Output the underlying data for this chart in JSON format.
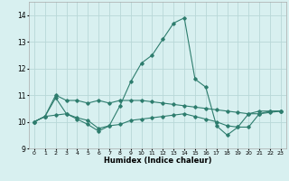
{
  "xlabel": "Humidex (Indice chaleur)",
  "x": [
    0,
    1,
    2,
    3,
    4,
    5,
    6,
    7,
    8,
    9,
    10,
    11,
    12,
    13,
    14,
    15,
    16,
    17,
    18,
    19,
    20,
    21,
    22,
    23
  ],
  "series": [
    [
      10.0,
      10.2,
      10.9,
      10.3,
      10.1,
      9.9,
      9.65,
      9.85,
      10.6,
      11.5,
      12.2,
      12.5,
      13.1,
      13.7,
      13.9,
      11.6,
      11.3,
      9.85,
      9.5,
      9.8,
      10.3,
      10.4,
      10.4,
      10.4
    ],
    [
      10.0,
      10.2,
      11.0,
      10.8,
      10.8,
      10.7,
      10.8,
      10.7,
      10.8,
      10.8,
      10.8,
      10.75,
      10.7,
      10.65,
      10.6,
      10.55,
      10.5,
      10.45,
      10.4,
      10.35,
      10.3,
      10.3,
      10.35,
      10.4
    ],
    [
      10.0,
      10.2,
      10.25,
      10.3,
      10.15,
      10.05,
      9.75,
      9.85,
      9.9,
      10.05,
      10.1,
      10.15,
      10.2,
      10.25,
      10.3,
      10.2,
      10.1,
      10.0,
      9.85,
      9.8,
      9.8,
      10.3,
      10.4,
      10.4
    ]
  ],
  "line_color": "#2e7d6e",
  "background_color": "#d8f0f0",
  "grid_color": "#b8d8d8",
  "ylim": [
    9,
    14.5
  ],
  "xlim": [
    -0.5,
    23.5
  ],
  "yticks": [
    9,
    10,
    11,
    12,
    13,
    14
  ],
  "xticks": [
    0,
    1,
    2,
    3,
    4,
    5,
    6,
    7,
    8,
    9,
    10,
    11,
    12,
    13,
    14,
    15,
    16,
    17,
    18,
    19,
    20,
    21,
    22,
    23
  ]
}
